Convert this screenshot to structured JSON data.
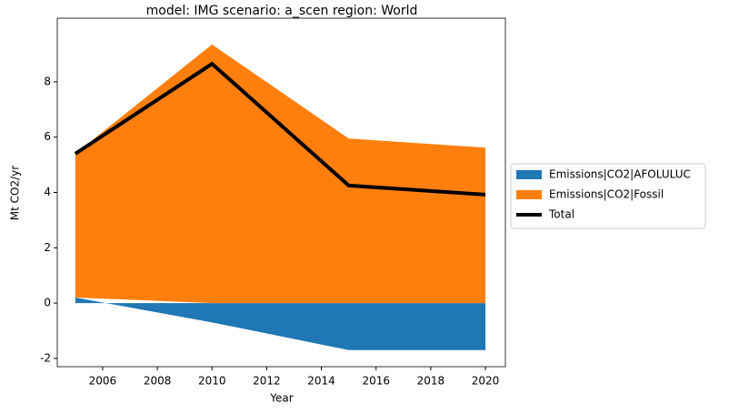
{
  "chart_data": {
    "type": "area",
    "title": "model: IMG scenario: a_scen region: World",
    "x_label": "Year",
    "y_label": "Mt CO2/yr",
    "x": [
      2005,
      2010,
      2015,
      2020
    ],
    "series": [
      {
        "name": "Emissions|CO2|AFOLULUC",
        "color": "#1f77b4",
        "kind": "area",
        "values": [
          0.2,
          -0.7,
          -1.7,
          -1.7
        ]
      },
      {
        "name": "Emissions|CO2|Fossil",
        "color": "#ff7f0e",
        "kind": "area",
        "values": [
          5.2,
          9.35,
          5.95,
          5.62
        ]
      },
      {
        "name": "Total",
        "color": "#000000",
        "kind": "line",
        "values": [
          5.4,
          8.65,
          4.25,
          3.92
        ]
      }
    ],
    "xlim": [
      2004.34,
      2020.73
    ],
    "ylim": [
      -2.3,
      10.3
    ],
    "xticks": [
      2006,
      2008,
      2010,
      2012,
      2014,
      2016,
      2018,
      2020
    ],
    "yticks": [
      -2,
      0,
      2,
      4,
      6,
      8
    ],
    "legend": "outside-right"
  }
}
